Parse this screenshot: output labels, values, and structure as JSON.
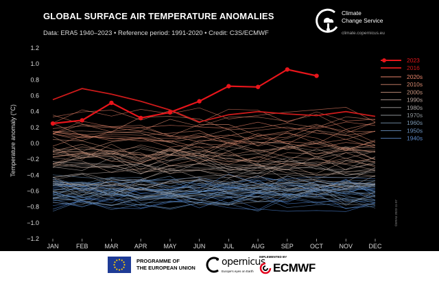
{
  "header": {
    "title": "GLOBAL SURFACE AIR TEMPERATURE ANOMALIES",
    "subtitle": "Data: ERA5 1940–2023 • Reference period: 1991-2020 • Credit: C3S/ECMWF"
  },
  "brand": {
    "c3s_name": "Climate\nChange Service",
    "c3s_url": "climate.copernicus.eu",
    "eu_text": "PROGRAMME OF\nTHE EUROPEAN UNION",
    "copernicus": "opernicus",
    "copernicus_tag": "Europe's eyes on Earth",
    "ecmwf_impl": "IMPLEMENTED BY",
    "ecmwf_name": "ECMWF",
    "image_code": "©ERA5 2023-11-07",
    "colors": {
      "c3s_logo": "#ffffff",
      "eu_blue": "#1e3b96",
      "eu_star": "#ffcc00",
      "ecmwf_red": "#e3001b"
    }
  },
  "chart_data": {
    "type": "line",
    "title": "GLOBAL SURFACE AIR TEMPERATURE ANOMALIES",
    "xlabel": "",
    "ylabel": "Temperature anomaly (°C)",
    "ylim": [
      -1.2,
      1.2
    ],
    "yticks": [
      "−1.2",
      "−1.0",
      "−0.8",
      "−0.6",
      "−0.4",
      "−0.2",
      "0.0",
      "0.2",
      "0.4",
      "0.6",
      "0.8",
      "1.0",
      "1.2"
    ],
    "ytick_values": [
      -1.2,
      -1.0,
      -0.8,
      -0.6,
      -0.4,
      -0.2,
      0.0,
      0.2,
      0.4,
      0.6,
      0.8,
      1.0,
      1.2
    ],
    "categories": [
      "JAN",
      "FEB",
      "MAR",
      "APR",
      "MAY",
      "JUN",
      "JUL",
      "AUG",
      "SEP",
      "OCT",
      "NOV",
      "DEC"
    ],
    "grid": false,
    "legend_position": "right",
    "highlight_series": [
      {
        "name": "2023",
        "color": "#e8151b",
        "markers": true,
        "values": [
          0.25,
          0.29,
          0.51,
          0.32,
          0.39,
          0.53,
          0.72,
          0.71,
          0.93,
          0.85
        ]
      },
      {
        "name": "2016",
        "color": "#cc1a1a",
        "markers": false,
        "values": [
          0.55,
          0.69,
          0.62,
          0.53,
          0.42,
          0.27,
          0.36,
          0.4,
          0.37,
          0.35,
          0.4,
          0.34
        ]
      }
    ],
    "decade_legend": [
      {
        "name": "2020s",
        "color": "#e9846a"
      },
      {
        "name": "2010s",
        "color": "#d98a70"
      },
      {
        "name": "2000s",
        "color": "#c9957f"
      },
      {
        "name": "1990s",
        "color": "#b8a39b"
      },
      {
        "name": "1980s",
        "color": "#a5a2a2"
      },
      {
        "name": "1970s",
        "color": "#8e9599"
      },
      {
        "name": "1960s",
        "color": "#7a96b0"
      },
      {
        "name": "1950s",
        "color": "#6b92c0"
      },
      {
        "name": "1940s",
        "color": "#5b88c8"
      }
    ],
    "decade_bands": [
      {
        "decade": "1940s",
        "base": -0.62,
        "color": "#4a7fcc"
      },
      {
        "decade": "1950s",
        "base": -0.65,
        "color": "#5a89c4"
      },
      {
        "decade": "1960s",
        "base": -0.6,
        "color": "#6a8fb6"
      },
      {
        "decade": "1970s",
        "base": -0.55,
        "color": "#8a96a2"
      },
      {
        "decade": "1980s",
        "base": -0.38,
        "color": "#a59c98"
      },
      {
        "decade": "1990s",
        "base": -0.22,
        "color": "#b99a8a"
      },
      {
        "decade": "2000s",
        "base": -0.05,
        "color": "#c99078"
      },
      {
        "decade": "2010s",
        "base": 0.14,
        "color": "#d5846a"
      },
      {
        "decade": "2020s",
        "base": 0.28,
        "color": "#dd7a62"
      }
    ]
  }
}
